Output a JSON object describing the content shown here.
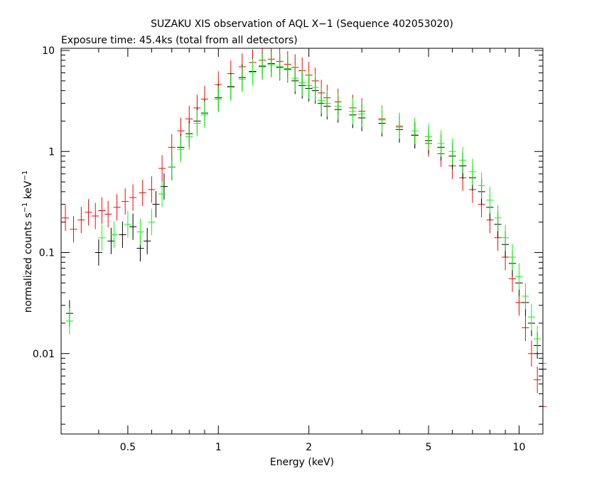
{
  "chart_data": {
    "type": "scatter",
    "title": "SUZAKU XIS observation of AQL X−1 (Sequence 402053020)",
    "subtitle": "Exposure time: 45.4ks (total from all detectors)",
    "xlabel": "Energy (keV)",
    "ylabel": "normalized counts s",
    "ylabel_sup1": "−1",
    "ylabel_mid": " keV",
    "ylabel_sup2": "−1",
    "x_scale": "log",
    "y_scale": "log",
    "xlim": [
      0.3,
      12
    ],
    "ylim": [
      0.0016,
      10.5
    ],
    "x_ticks": [
      {
        "value": 0.5,
        "label": "0.5"
      },
      {
        "value": 1,
        "label": "1"
      },
      {
        "value": 2,
        "label": "2"
      },
      {
        "value": 5,
        "label": "5"
      },
      {
        "value": 10,
        "label": "10"
      }
    ],
    "y_ticks": [
      {
        "value": 10,
        "label": "10"
      },
      {
        "value": 1,
        "label": "1"
      },
      {
        "value": 0.1,
        "label": "0.1"
      },
      {
        "value": 0.01,
        "label": "0.01"
      }
    ],
    "grid": false,
    "legend": "none",
    "series": [
      {
        "color": "#ff0000",
        "points": [
          [
            0.31,
            0.22
          ],
          [
            0.33,
            0.17
          ],
          [
            0.35,
            0.21
          ],
          [
            0.37,
            0.25
          ],
          [
            0.39,
            0.23
          ],
          [
            0.41,
            0.26
          ],
          [
            0.43,
            0.24
          ],
          [
            0.46,
            0.28
          ],
          [
            0.49,
            0.32
          ],
          [
            0.52,
            0.35
          ],
          [
            0.56,
            0.39
          ],
          [
            0.6,
            0.42
          ],
          [
            0.65,
            0.68
          ],
          [
            0.7,
            1.1
          ],
          [
            0.75,
            1.6
          ],
          [
            0.8,
            2.1
          ],
          [
            0.85,
            2.7
          ],
          [
            0.9,
            3.3
          ],
          [
            1.0,
            4.6
          ],
          [
            1.1,
            5.9
          ],
          [
            1.2,
            6.9
          ],
          [
            1.3,
            7.6
          ],
          [
            1.4,
            8.0
          ],
          [
            1.5,
            8.2
          ],
          [
            1.6,
            7.8
          ],
          [
            1.7,
            7.3
          ],
          [
            1.8,
            6.8
          ],
          [
            1.9,
            6.3
          ],
          [
            2.0,
            5.7
          ],
          [
            2.1,
            5.0
          ],
          [
            2.2,
            3.8
          ],
          [
            2.3,
            3.4
          ],
          [
            2.5,
            3.1
          ],
          [
            2.8,
            2.7
          ],
          [
            3.0,
            2.5
          ],
          [
            3.5,
            2.1
          ],
          [
            4.0,
            1.75
          ],
          [
            4.5,
            1.45
          ],
          [
            5.0,
            1.2
          ],
          [
            5.5,
            0.95
          ],
          [
            6.0,
            0.72
          ],
          [
            6.5,
            0.55
          ],
          [
            7.0,
            0.42
          ],
          [
            7.5,
            0.3
          ],
          [
            8.0,
            0.21
          ],
          [
            8.5,
            0.14
          ],
          [
            9.0,
            0.09
          ],
          [
            9.5,
            0.055
          ],
          [
            10.0,
            0.032
          ],
          [
            10.5,
            0.018
          ],
          [
            11.0,
            0.01
          ],
          [
            11.5,
            0.0055
          ],
          [
            12.0,
            0.003
          ]
        ]
      },
      {
        "color": "#000000",
        "points": [
          [
            0.32,
            0.025
          ],
          [
            0.4,
            0.1
          ],
          [
            0.44,
            0.13
          ],
          [
            0.48,
            0.15
          ],
          [
            0.52,
            0.18
          ],
          [
            0.55,
            0.11
          ],
          [
            0.58,
            0.13
          ],
          [
            0.62,
            0.3
          ],
          [
            0.66,
            0.45
          ],
          [
            0.7,
            0.7
          ],
          [
            0.75,
            1.1
          ],
          [
            0.8,
            1.5
          ],
          [
            0.85,
            2.0
          ],
          [
            0.9,
            2.4
          ],
          [
            1.0,
            3.4
          ],
          [
            1.1,
            4.4
          ],
          [
            1.2,
            5.4
          ],
          [
            1.3,
            6.2
          ],
          [
            1.4,
            7.0
          ],
          [
            1.5,
            7.4
          ],
          [
            1.6,
            6.8
          ],
          [
            1.7,
            6.5
          ],
          [
            1.8,
            5.0
          ],
          [
            1.9,
            4.5
          ],
          [
            2.0,
            4.2
          ],
          [
            2.1,
            4.0
          ],
          [
            2.2,
            3.0
          ],
          [
            2.3,
            2.8
          ],
          [
            2.5,
            2.6
          ],
          [
            2.8,
            2.3
          ],
          [
            3.0,
            2.15
          ],
          [
            3.5,
            1.9
          ],
          [
            4.0,
            1.65
          ],
          [
            4.5,
            1.45
          ],
          [
            5.0,
            1.28
          ],
          [
            5.5,
            1.1
          ],
          [
            6.0,
            0.9
          ],
          [
            6.5,
            0.72
          ],
          [
            7.0,
            0.55
          ],
          [
            7.5,
            0.4
          ],
          [
            8.0,
            0.28
          ],
          [
            8.5,
            0.19
          ],
          [
            9.0,
            0.12
          ],
          [
            9.5,
            0.078
          ],
          [
            10.0,
            0.05
          ],
          [
            10.5,
            0.032
          ],
          [
            11.0,
            0.02
          ],
          [
            11.5,
            0.012
          ],
          [
            12.0,
            0.007
          ]
        ]
      },
      {
        "color": "#00ff00",
        "points": [
          [
            0.32,
            0.021
          ],
          [
            0.41,
            0.14
          ],
          [
            0.45,
            0.15
          ],
          [
            0.5,
            0.19
          ],
          [
            0.55,
            0.16
          ],
          [
            0.6,
            0.2
          ],
          [
            0.65,
            0.38
          ],
          [
            0.7,
            0.7
          ],
          [
            0.75,
            1.05
          ],
          [
            0.8,
            1.4
          ],
          [
            0.85,
            1.9
          ],
          [
            0.9,
            2.3
          ],
          [
            1.0,
            3.3
          ],
          [
            1.1,
            4.3
          ],
          [
            1.2,
            5.2
          ],
          [
            1.3,
            6.1
          ],
          [
            1.4,
            6.9
          ],
          [
            1.5,
            7.3
          ],
          [
            1.6,
            6.9
          ],
          [
            1.7,
            6.6
          ],
          [
            1.8,
            5.3
          ],
          [
            1.9,
            4.8
          ],
          [
            2.0,
            4.5
          ],
          [
            2.1,
            4.3
          ],
          [
            2.2,
            3.2
          ],
          [
            2.3,
            3.0
          ],
          [
            2.5,
            2.8
          ],
          [
            2.8,
            2.5
          ],
          [
            3.0,
            2.35
          ],
          [
            3.5,
            2.05
          ],
          [
            4.0,
            1.8
          ],
          [
            4.5,
            1.6
          ],
          [
            5.0,
            1.4
          ],
          [
            5.5,
            1.2
          ],
          [
            6.0,
            1.0
          ],
          [
            6.5,
            0.82
          ],
          [
            7.0,
            0.63
          ],
          [
            7.5,
            0.46
          ],
          [
            8.0,
            0.33
          ],
          [
            8.5,
            0.22
          ],
          [
            9.0,
            0.14
          ],
          [
            9.5,
            0.09
          ],
          [
            10.0,
            0.058
          ],
          [
            10.5,
            0.037
          ],
          [
            11.0,
            0.023
          ],
          [
            11.5,
            0.014
          ],
          [
            12.0,
            0.008
          ]
        ]
      }
    ]
  }
}
